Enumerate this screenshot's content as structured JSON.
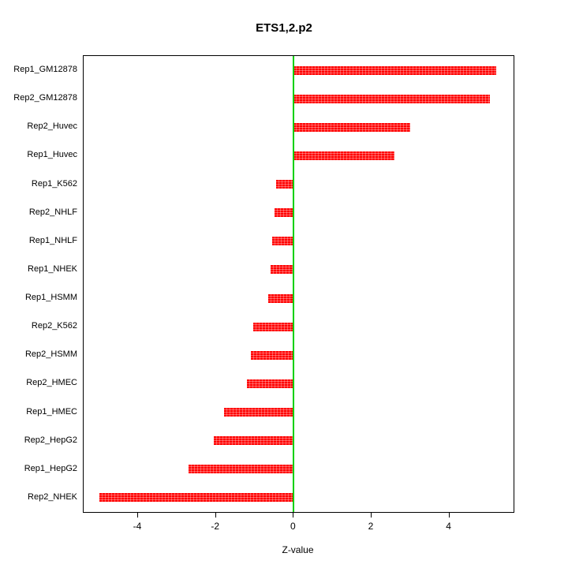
{
  "chart_data": {
    "type": "bar",
    "orientation": "horizontal",
    "title": "ETS1,2.p2",
    "xlabel": "Z-value",
    "ylabel": "",
    "xlim": [
      -5.4,
      5.65
    ],
    "xticks": [
      -4,
      -2,
      0,
      2,
      4
    ],
    "categories": [
      "Rep1_GM12878",
      "Rep2_GM12878",
      "Rep2_Huvec",
      "Rep1_Huvec",
      "Rep1_K562",
      "Rep2_NHLF",
      "Rep1_NHLF",
      "Rep1_NHEK",
      "Rep1_HSMM",
      "Rep2_K562",
      "Rep2_HSMM",
      "Rep2_HMEC",
      "Rep1_HMEC",
      "Rep2_HepG2",
      "Rep1_HepG2",
      "Rep2_NHEK"
    ],
    "values": [
      5.2,
      5.05,
      3.0,
      2.6,
      -0.45,
      -0.5,
      -0.55,
      -0.6,
      -0.65,
      -1.05,
      -1.1,
      -1.2,
      -1.8,
      -2.05,
      -2.7,
      -5.0
    ],
    "bar_color": "#ff0000",
    "zero_line_color": "#00d000",
    "grid": false,
    "legend": false
  }
}
